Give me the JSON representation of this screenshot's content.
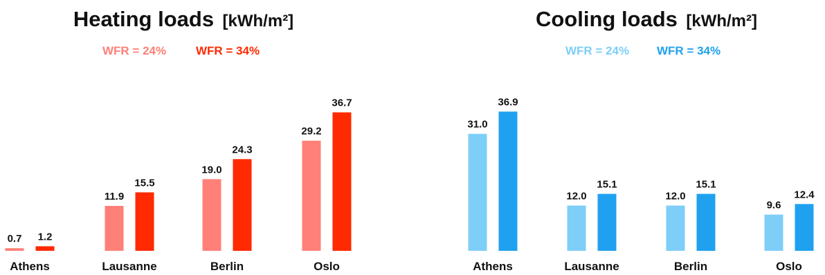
{
  "chart_data": [
    {
      "type": "bar",
      "title": "Heating loads",
      "unit": "[kWh/m²]",
      "categories": [
        "Athens",
        "Lausanne",
        "Berlin",
        "Oslo"
      ],
      "series": [
        {
          "name": "WFR = 24%",
          "color": "#FF8078",
          "values": [
            0.7,
            11.9,
            19.0,
            29.2
          ],
          "labels": [
            "0.7",
            "11.9",
            "19.0",
            "29.2"
          ]
        },
        {
          "name": "WFR = 34%",
          "color": "#FF2A00",
          "values": [
            1.2,
            15.5,
            24.3,
            36.7
          ],
          "labels": [
            "1.2",
            "15.5",
            "24.3",
            "36.7"
          ]
        }
      ],
      "ylim": [
        0,
        40
      ],
      "grid": false,
      "legend": "top-center"
    },
    {
      "type": "bar",
      "title": "Cooling loads",
      "unit": "[kWh/m²]",
      "categories": [
        "Athens",
        "Lausanne",
        "Berlin",
        "Oslo"
      ],
      "series": [
        {
          "name": "WFR = 24%",
          "color": "#7ECEF8",
          "values": [
            31.0,
            12.0,
            12.0,
            9.6
          ],
          "labels": [
            "31.0",
            "12.0",
            "12.0",
            "9.6"
          ]
        },
        {
          "name": "WFR = 34%",
          "color": "#1FA1F0",
          "values": [
            36.9,
            15.1,
            15.1,
            12.4
          ],
          "labels": [
            "36.9",
            "15.1",
            "15.1",
            "12.4"
          ]
        }
      ],
      "ylim": [
        0,
        40
      ],
      "grid": false,
      "legend": "top-center"
    }
  ]
}
